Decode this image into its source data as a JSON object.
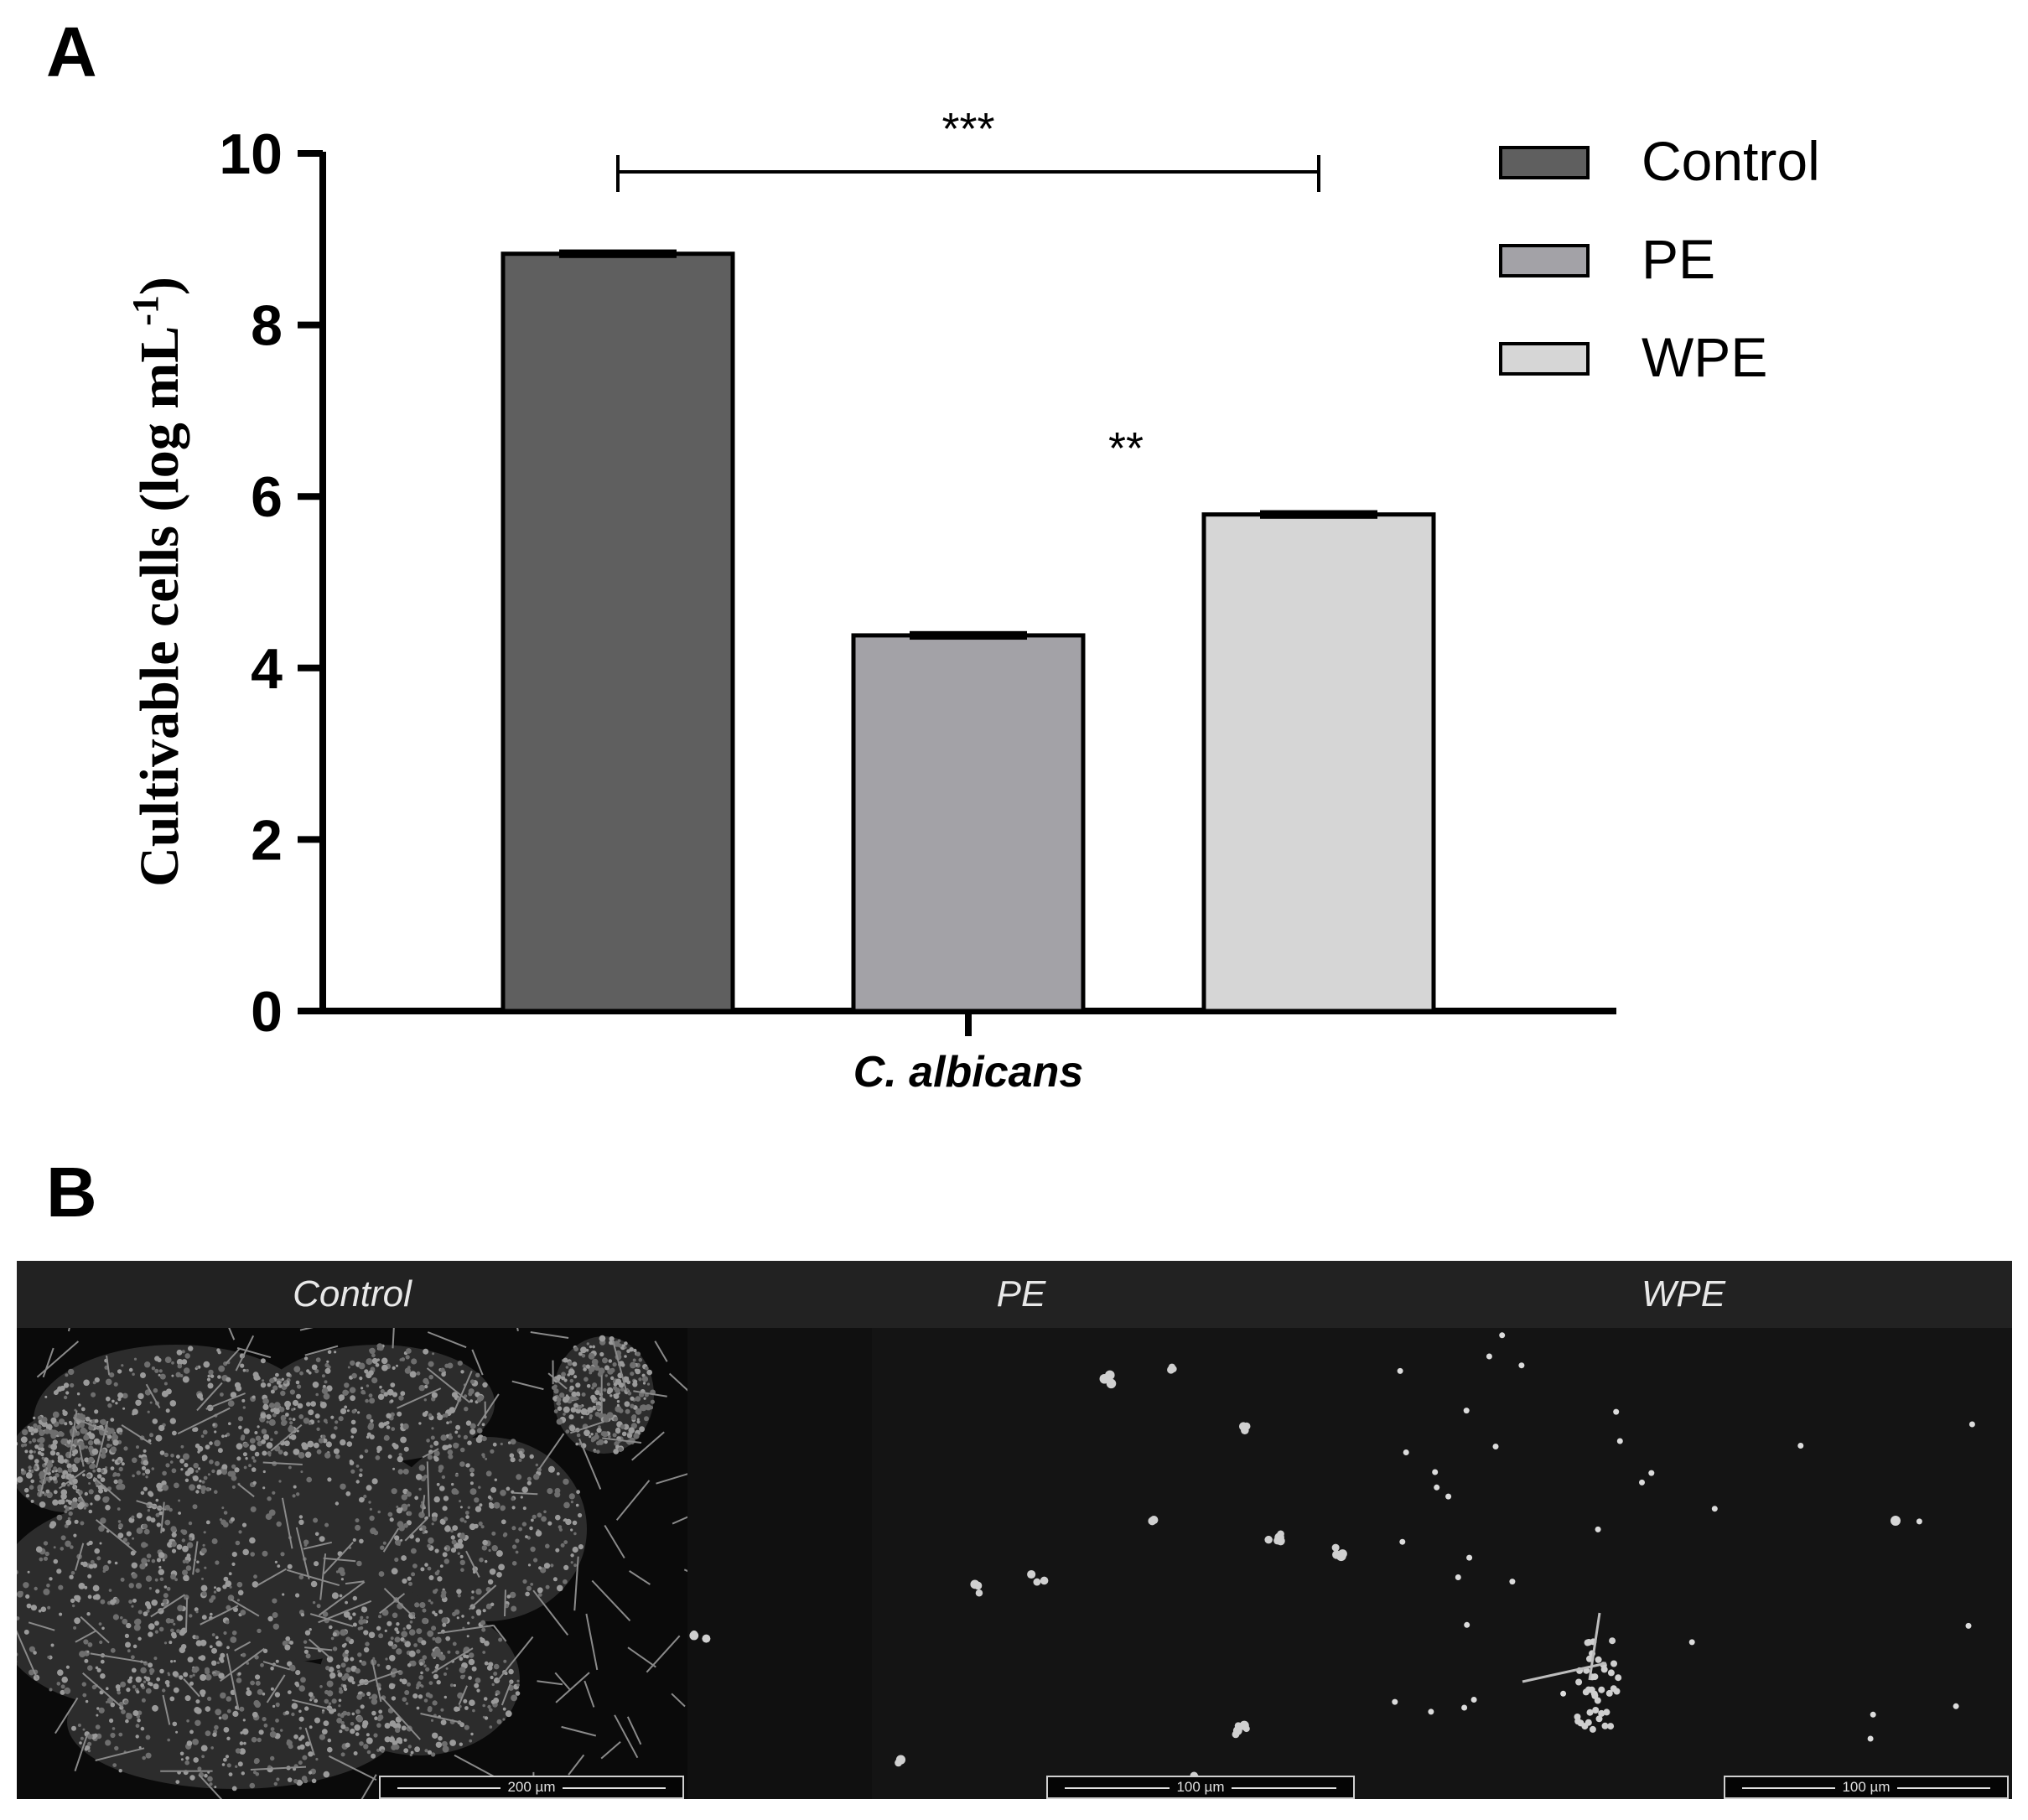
{
  "panel_a": {
    "letter": "A"
  },
  "panel_b": {
    "letter": "B"
  },
  "chart_data": {
    "type": "bar",
    "categories": [
      "C. albicans"
    ],
    "series": [
      {
        "name": "Control",
        "values": [
          8.83
        ],
        "error": [
          0.05
        ],
        "color": "#5f5f5f"
      },
      {
        "name": "PE",
        "values": [
          4.38
        ],
        "error": [
          0.05
        ],
        "color": "#a3a2a7"
      },
      {
        "name": "WPE",
        "values": [
          5.79
        ],
        "error": [
          0.05
        ],
        "color": "#d6d6d6"
      }
    ],
    "ylabel": "Cultivable cells (log mL",
    "ylabel_superscript": "-1",
    "ylabel_suffix": ")",
    "xlabel": "",
    "ylim": [
      0,
      10
    ],
    "yticks": [
      "0",
      "2",
      "4",
      "6",
      "8",
      "10"
    ],
    "grid": false,
    "legend": "right",
    "significance": [
      {
        "label": "***",
        "between": [
          "Control",
          "WPE"
        ]
      },
      {
        "label": "**",
        "between": [
          "PE",
          "WPE"
        ]
      }
    ]
  },
  "sem_panels": [
    {
      "title": "Control",
      "scale_label": "200 µm"
    },
    {
      "title": "PE",
      "scale_label": "100 µm"
    },
    {
      "title": "WPE",
      "scale_label": "100 µm"
    }
  ]
}
